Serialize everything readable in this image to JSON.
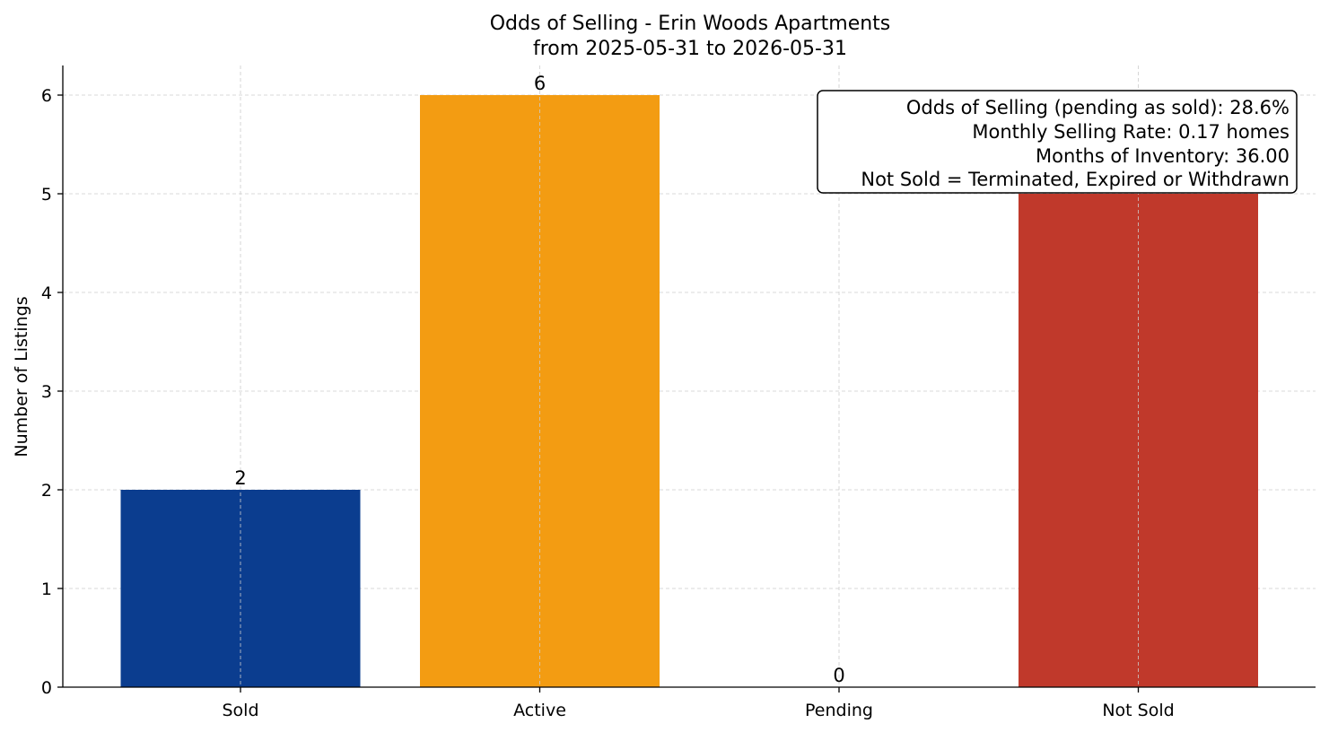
{
  "chart_data": {
    "type": "bar",
    "title": "Odds of Selling - Erin Woods Apartments",
    "subtitle": "from 2025-05-31 to 2026-05-31",
    "xlabel": "",
    "ylabel": "Number of Listings",
    "categories": [
      "Sold",
      "Active",
      "Pending",
      "Not Sold"
    ],
    "values": [
      2,
      6,
      0,
      5
    ],
    "colors": [
      "#0b3d8f",
      "#f39c12",
      "#2a7d2e",
      "#c0392b"
    ],
    "ylim": [
      0,
      6.3
    ],
    "yticks": [
      "0",
      "1",
      "2",
      "3",
      "4",
      "5",
      "6"
    ],
    "data_labels": [
      "2",
      "6",
      "0",
      "5"
    ],
    "grid": true,
    "info_box": {
      "placement": "top-right",
      "lines": [
        "Odds of Selling (pending as sold): 28.6%",
        "Monthly Selling Rate: 0.17 homes",
        "Months of Inventory: 36.00",
        "Not Sold = Terminated, Expired or Withdrawn"
      ]
    }
  }
}
